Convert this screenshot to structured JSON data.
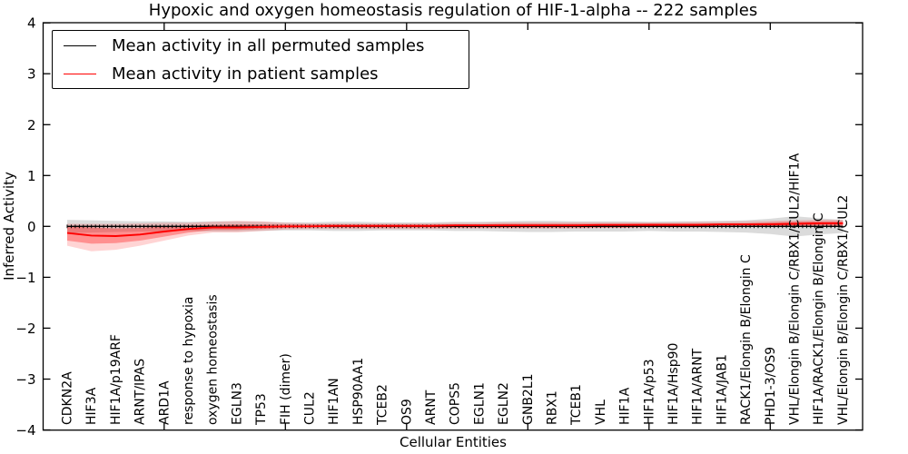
{
  "figure": {
    "title": "Hypoxic and oxygen homeostasis regulation of HIF-1-alpha -- 222 samples",
    "xlabel": "Cellular Entities",
    "ylabel": "Inferred Activity",
    "legend": [
      {
        "label": "Mean activity in all permuted samples",
        "color": "#000000"
      },
      {
        "label": "Mean activity in patient samples",
        "color": "#ff0000"
      }
    ]
  },
  "chart_data": {
    "type": "line",
    "title": "Hypoxic and oxygen homeostasis regulation of HIF-1-alpha -- 222 samples",
    "xlabel": "Cellular Entities",
    "ylabel": "Inferred Activity",
    "ylim": [
      -4,
      4
    ],
    "yticks": [
      -4,
      -3,
      -2,
      -1,
      0,
      1,
      2,
      3,
      4
    ],
    "xtick_major_indices": [
      4,
      9,
      14,
      19,
      24,
      29
    ],
    "grid": false,
    "legend_position": "upper left",
    "categories": [
      "CDKN2A",
      "HIF3A",
      "HIF1A/p19ARF",
      "ARNT/IPAS",
      "ARD1A",
      "response to hypoxia",
      "oxygen homeostasis",
      "EGLN3",
      "TP53",
      "FIH (dimer)",
      "CUL2",
      "HIF1AN",
      "HSP90AA1",
      "TCEB2",
      "OS9",
      "ARNT",
      "COPS5",
      "EGLN1",
      "EGLN2",
      "GNB2L1",
      "RBX1",
      "TCEB1",
      "VHL",
      "HIF1A",
      "HIF1A/p53",
      "HIF1A/Hsp90",
      "HIF1A/ARNT",
      "HIF1A/JAB1",
      "RACK1/Elongin B/Elongin C",
      "PHD1-3/OS9",
      "VHL/Elongin B/Elongin C/RBX1/CUL2/HIF1A",
      "HIF1A/RACK1/Elongin B/Elongin C",
      "VHL/Elongin B/Elongin C/RBX1/CUL2"
    ],
    "series": [
      {
        "name": "Mean activity in all permuted samples",
        "color": "#000000",
        "marker": "vertical-dash",
        "values": [
          0,
          0,
          0,
          0,
          0,
          0,
          0,
          0,
          0,
          0,
          0,
          0,
          0,
          0,
          0,
          0,
          0,
          0,
          0,
          0,
          0,
          0,
          0,
          0,
          0,
          0,
          0,
          0,
          0,
          0,
          0,
          0,
          0
        ],
        "band": {
          "color": "#000000",
          "opacity": 0.14,
          "lo": [
            -0.13,
            -0.12,
            -0.11,
            -0.1,
            -0.1,
            -0.09,
            -0.1,
            -0.1,
            -0.09,
            -0.08,
            -0.08,
            -0.09,
            -0.09,
            -0.08,
            -0.08,
            -0.08,
            -0.09,
            -0.09,
            -0.1,
            -0.11,
            -0.11,
            -0.1,
            -0.1,
            -0.1,
            -0.09,
            -0.1,
            -0.1,
            -0.11,
            -0.12,
            -0.15,
            -0.2,
            -0.16,
            -0.13
          ],
          "hi": [
            0.13,
            0.12,
            0.11,
            0.1,
            0.1,
            0.09,
            0.1,
            0.1,
            0.09,
            0.08,
            0.08,
            0.09,
            0.09,
            0.08,
            0.08,
            0.08,
            0.09,
            0.09,
            0.1,
            0.11,
            0.11,
            0.1,
            0.1,
            0.1,
            0.09,
            0.1,
            0.1,
            0.11,
            0.12,
            0.15,
            0.2,
            0.16,
            0.13
          ]
        }
      },
      {
        "name": "Mean activity in patient samples",
        "color": "#ff0000",
        "values": [
          -0.13,
          -0.18,
          -0.19,
          -0.16,
          -0.1,
          -0.05,
          -0.02,
          -0.02,
          -0.01,
          0.0,
          0.0,
          0.01,
          0.01,
          0.01,
          0.01,
          0.01,
          0.02,
          0.02,
          0.02,
          0.02,
          0.02,
          0.02,
          0.03,
          0.03,
          0.03,
          0.03,
          0.03,
          0.04,
          0.04,
          0.04,
          0.05,
          0.06,
          0.06
        ],
        "band_inner": {
          "color": "#ff0000",
          "opacity": 0.32,
          "lo": [
            -0.28,
            -0.34,
            -0.33,
            -0.28,
            -0.2,
            -0.12,
            -0.07,
            -0.07,
            -0.05,
            -0.03,
            -0.02,
            -0.02,
            -0.02,
            -0.02,
            -0.02,
            -0.02,
            -0.02,
            -0.02,
            -0.02,
            -0.02,
            -0.02,
            -0.02,
            -0.02,
            -0.02,
            -0.01,
            -0.01,
            -0.01,
            -0.01,
            -0.01,
            0.0,
            0.01,
            0.02,
            0.01
          ],
          "hi": [
            0.0,
            -0.02,
            -0.04,
            -0.03,
            0.0,
            0.02,
            0.03,
            0.04,
            0.04,
            0.04,
            0.04,
            0.04,
            0.04,
            0.04,
            0.04,
            0.04,
            0.04,
            0.04,
            0.05,
            0.05,
            0.05,
            0.05,
            0.05,
            0.05,
            0.06,
            0.06,
            0.06,
            0.06,
            0.06,
            0.08,
            0.09,
            0.1,
            0.1
          ]
        },
        "band_outer": {
          "color": "#ff0000",
          "opacity": 0.17,
          "lo": [
            -0.38,
            -0.49,
            -0.46,
            -0.38,
            -0.28,
            -0.18,
            -0.12,
            -0.12,
            -0.09,
            -0.06,
            -0.05,
            -0.05,
            -0.05,
            -0.05,
            -0.05,
            -0.05,
            -0.04,
            -0.04,
            -0.04,
            -0.04,
            -0.04,
            -0.04,
            -0.03,
            -0.03,
            -0.02,
            -0.02,
            -0.02,
            -0.01,
            -0.01,
            0.0,
            0.0,
            0.01,
            0.0
          ],
          "hi": [
            0.05,
            0.05,
            0.05,
            0.06,
            0.07,
            0.07,
            0.09,
            0.11,
            0.1,
            0.07,
            0.06,
            0.06,
            0.06,
            0.06,
            0.06,
            0.06,
            0.07,
            0.07,
            0.08,
            0.08,
            0.08,
            0.08,
            0.08,
            0.08,
            0.08,
            0.08,
            0.09,
            0.09,
            0.1,
            0.11,
            0.12,
            0.13,
            0.13
          ]
        }
      }
    ]
  }
}
